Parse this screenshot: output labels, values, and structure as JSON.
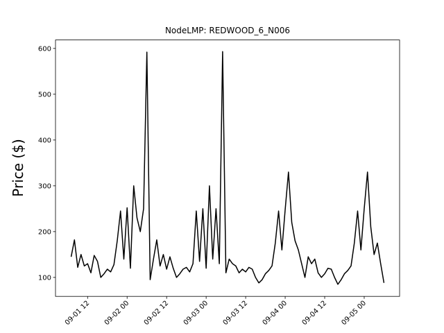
{
  "chart_data": {
    "type": "line",
    "title": "NodeLMP: REDWOOD_6_N006",
    "y_label": "Price ($)",
    "x": [
      "09-01 07",
      "09-01 08",
      "09-01 09",
      "09-01 10",
      "09-01 11",
      "09-01 12",
      "09-01 13",
      "09-01 14",
      "09-01 15",
      "09-01 16",
      "09-01 17",
      "09-01 18",
      "09-01 19",
      "09-01 20",
      "09-01 21",
      "09-01 22",
      "09-01 23",
      "09-02 00",
      "09-02 01",
      "09-02 02",
      "09-02 03",
      "09-02 04",
      "09-02 05",
      "09-02 06",
      "09-02 07",
      "09-02 08",
      "09-02 09",
      "09-02 10",
      "09-02 11",
      "09-02 12",
      "09-02 13",
      "09-02 14",
      "09-02 15",
      "09-02 16",
      "09-02 17",
      "09-02 18",
      "09-02 19",
      "09-02 20",
      "09-02 21",
      "09-02 22",
      "09-02 23",
      "09-03 00",
      "09-03 01",
      "09-03 02",
      "09-03 03",
      "09-03 04",
      "09-03 05",
      "09-03 06",
      "09-03 07",
      "09-03 08",
      "09-03 09",
      "09-03 10",
      "09-03 11",
      "09-03 12",
      "09-03 13",
      "09-03 14",
      "09-03 15",
      "09-03 16",
      "09-03 17",
      "09-03 18",
      "09-03 19",
      "09-03 20",
      "09-03 21",
      "09-03 22",
      "09-03 23",
      "09-04 00",
      "09-04 01",
      "09-04 02",
      "09-04 03",
      "09-04 04",
      "09-04 05",
      "09-04 06",
      "09-04 07",
      "09-04 08",
      "09-04 09",
      "09-04 10",
      "09-04 11",
      "09-04 12",
      "09-04 13",
      "09-04 14",
      "09-04 15",
      "09-04 16",
      "09-04 17",
      "09-04 18",
      "09-04 19",
      "09-04 20",
      "09-04 21",
      "09-04 22",
      "09-04 23",
      "09-05 00",
      "09-05 01",
      "09-05 02",
      "09-05 03",
      "09-05 04",
      "09-05 05",
      "09-05 06"
    ],
    "series": [
      {
        "name": "Price",
        "color": "#000000",
        "values": [
          145,
          182,
          122,
          150,
          125,
          130,
          110,
          148,
          135,
          100,
          108,
          118,
          112,
          128,
          180,
          245,
          140,
          252,
          120,
          300,
          230,
          200,
          250,
          592,
          95,
          140,
          182,
          125,
          150,
          118,
          145,
          120,
          100,
          108,
          118,
          122,
          112,
          130,
          245,
          135,
          250,
          120,
          300,
          140,
          250,
          130,
          593,
          110,
          140,
          130,
          125,
          110,
          118,
          112,
          122,
          118,
          100,
          88,
          95,
          108,
          115,
          125,
          175,
          245,
          160,
          248,
          330,
          220,
          180,
          160,
          130,
          100,
          145,
          130,
          140,
          110,
          100,
          108,
          120,
          118,
          100,
          85,
          95,
          108,
          115,
          125,
          175,
          245,
          160,
          250,
          330,
          210,
          150,
          175,
          130,
          88
        ]
      }
    ],
    "xlim": [
      "09-01 02:15",
      "09-05 10:45"
    ],
    "xticks": [
      "09-01 12",
      "09-02 00",
      "09-02 12",
      "09-03 00",
      "09-03 12",
      "09-04 00",
      "09-04 12",
      "09-05 00"
    ],
    "ylim": [
      58.6,
      618.5
    ],
    "yticks": [
      100,
      200,
      300,
      400,
      500,
      600
    ]
  }
}
